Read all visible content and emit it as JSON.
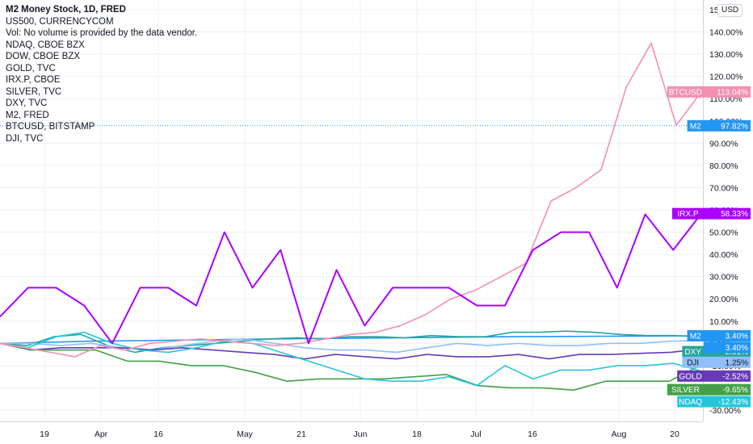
{
  "legend": {
    "title": "M2 Money Stock, 1D, FRED",
    "lines": [
      "US500, CURRENCYCOM",
      "Vol: No volume is provided by the data vendor.",
      "NDAQ, CBOE BZX",
      "DOW, CBOE BZX",
      "GOLD, TVC",
      "IRX.P, CBOE",
      "SILVER, TVC",
      "DXY, TVC",
      "M2, FRED",
      "BTCUSD, BITSTAMP",
      "DJI, TVC"
    ]
  },
  "currency_button": "USD",
  "colors": {
    "BTCUSD": "#f48fb1",
    "IRX.P": "#aa00ff",
    "M2": "#2196f3",
    "DXY": "#26a69a",
    "DJI": "#90bff9",
    "GOLD": "#673ab7",
    "SILVER": "#43a047",
    "NDAQ": "#26c6da",
    "grid": "#eef0f3",
    "axis_border": "#d1d4dc"
  },
  "chart_data": {
    "type": "line",
    "x_ticks": [
      "19",
      "Apr",
      "16",
      "May",
      "21",
      "Jun",
      "18",
      "Jul",
      "16",
      "Aug",
      "20"
    ],
    "y_ticks": [
      "150.00%",
      "140.00%",
      "130.00%",
      "120.00%",
      "110.00%",
      "100.00%",
      "90.00%",
      "80.00%",
      "70.00%",
      "60.00%",
      "50.00%",
      "40.00%",
      "30.00%",
      "20.00%",
      "10.00%",
      "0.00%",
      "-10.00%",
      "-20.00%",
      "-30.00%"
    ],
    "y_tick_values": [
      150,
      140,
      130,
      120,
      110,
      100,
      90,
      80,
      70,
      60,
      50,
      40,
      30,
      20,
      10,
      0,
      -10,
      -20,
      -30
    ],
    "ylim": [
      -36,
      155
    ],
    "series": [
      {
        "name": "BTCUSD",
        "label": "BTCUSD",
        "value_label": "113.04%",
        "values": [
          0,
          -2,
          -4,
          -6,
          -1,
          -3,
          0,
          1,
          2,
          1,
          0,
          -1,
          0,
          2,
          4,
          5,
          8,
          13,
          20,
          24,
          30,
          36,
          64,
          70,
          78,
          115,
          135,
          98,
          113.04
        ]
      },
      {
        "name": "IRX.P",
        "label": "IRX.P",
        "value_label": "58.33%",
        "values": [
          12,
          25,
          25,
          17,
          0,
          25,
          25,
          17,
          50,
          25,
          42,
          0,
          33,
          8,
          25,
          25,
          25,
          17,
          17,
          42,
          50,
          50,
          25,
          58,
          42,
          58.33
        ]
      },
      {
        "name": "M2",
        "label": "M2",
        "value_label": "3.40%",
        "values": [
          0,
          0.5,
          1,
          1.2,
          1.5,
          1.8,
          2,
          2.2,
          2.4,
          2.6,
          2.8,
          3.0,
          3.1,
          3.2,
          3.3,
          3.4
        ]
      },
      {
        "name": "DXY",
        "label": "DXY",
        "value_label": "2.91%",
        "values": [
          0,
          -1,
          3,
          4,
          -1,
          -4,
          -2,
          -1,
          0,
          1,
          2,
          2.5,
          2,
          3,
          3,
          2.5,
          3.5,
          3,
          3,
          5,
          5,
          5.5,
          5,
          4,
          3.5,
          3.5,
          2.91
        ]
      },
      {
        "name": "DJI",
        "label": "DJI",
        "value_label": "1.25%",
        "values": [
          0,
          0,
          -1,
          0,
          -2,
          -3,
          -1,
          1,
          2,
          0,
          -2,
          -3,
          -3,
          -4,
          -2,
          0,
          -1,
          0,
          -1,
          -1,
          0,
          0,
          1,
          1.25
        ]
      },
      {
        "name": "GOLD",
        "label": "GOLD",
        "value_label": "-2.52%",
        "values": [
          0,
          -3,
          -2,
          -2,
          -2,
          -3,
          -2,
          -3,
          -4,
          -5,
          -7,
          -5,
          -6,
          -7,
          -5,
          -6,
          -6,
          -5,
          -7,
          -5,
          -5,
          -4.5,
          -4,
          -2.52
        ]
      },
      {
        "name": "SILVER",
        "label": "SILVER",
        "value_label": "-9.65%",
        "values": [
          0,
          -3,
          -3,
          -3,
          -8,
          -8,
          -10,
          -10,
          -13,
          -17,
          -16,
          -16,
          -16,
          -15,
          -14,
          -19,
          -20,
          -20,
          -21,
          -17,
          -17,
          -17,
          -9.65
        ]
      },
      {
        "name": "NDAQ",
        "label": "NDAQ",
        "value_label": "-12.43%",
        "values": [
          0,
          -2,
          3,
          5,
          0,
          -3,
          -4,
          -2,
          1,
          0,
          -4,
          -8,
          -12,
          -16,
          -17,
          -17,
          -15,
          -19,
          -10,
          -16,
          -12,
          -12,
          -10,
          -10,
          -9,
          -12.43
        ]
      }
    ],
    "extra_axis_tags": [
      {
        "label": "",
        "value_label": "3.40%",
        "y": 3.4,
        "color": "#2196f3"
      }
    ]
  }
}
